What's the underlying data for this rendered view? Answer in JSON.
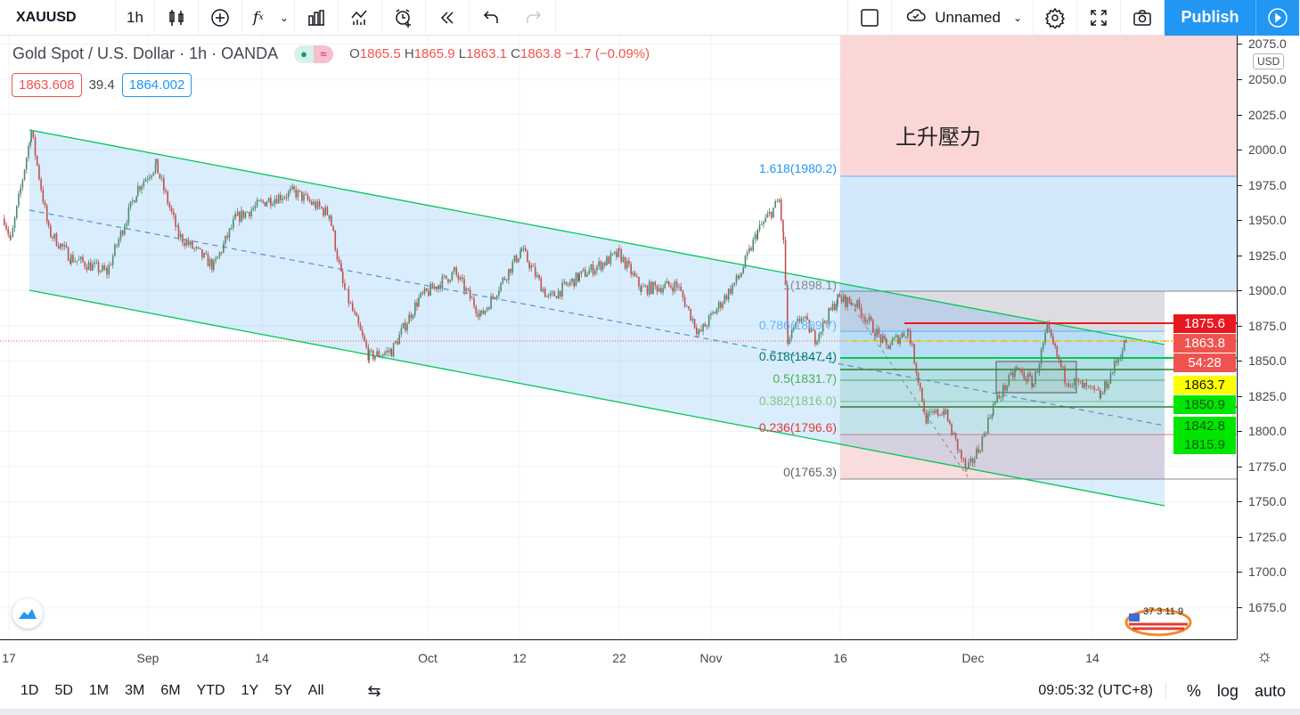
{
  "toolbar": {
    "symbol": "XAUUSD",
    "interval": "1h",
    "layout_name": "Unnamed",
    "publish_label": "Publish",
    "icons": [
      "candles-icon",
      "add-compare-icon",
      "indicators-icon",
      "chevron-down-icon",
      "financials-icon",
      "templates-icon",
      "alert-icon",
      "replay-icon",
      "undo-icon",
      "redo-icon",
      "square-icon",
      "cloud-check-icon",
      "gear-icon",
      "fullscreen-icon",
      "camera-icon",
      "play-icon"
    ]
  },
  "legend": {
    "title": "Gold Spot / U.S. Dollar · 1h · OANDA",
    "o_label": "O",
    "o": "1865.5",
    "h_label": "H",
    "h": "1865.9",
    "l_label": "L",
    "l": "1863.1",
    "c_label": "C",
    "c": "1863.8",
    "change": "−1.7 (−0.09%)",
    "bid": "1863.608",
    "spread": "39.4",
    "ask": "1864.002"
  },
  "annotation": "上升壓力",
  "fib_labels": [
    "1.618(1980.2)",
    "1(1898.1)",
    "0.786(1869.7)",
    "0.618(1847.4)",
    "0.5(1831.7)",
    "0.382(1816.0)",
    "0.236(1796.6)",
    "0(1765.3)"
  ],
  "price_axis": {
    "currency": "USD",
    "ticks": [
      "2075.0",
      "2050.0",
      "2025.0",
      "2000.0",
      "1975.0",
      "1950.0",
      "1925.0",
      "1900.0",
      "1875.0",
      "1850.0",
      "1825.0",
      "1800.0",
      "1775.0",
      "1750.0",
      "1725.0",
      "1700.0",
      "1675.0"
    ],
    "badges": [
      {
        "text": "1875.6",
        "bg": "#e8171f",
        "fg": "#ffffff"
      },
      {
        "text": "1863.8",
        "bg": "#ef5350",
        "fg": "#ffffff"
      },
      {
        "text": "54:28",
        "bg": "#ef5350",
        "fg": "#ffffff"
      },
      {
        "text": "1863.7",
        "bg": "#ffff00",
        "fg": "#131722"
      },
      {
        "text": "1850.9",
        "bg": "#00e600",
        "fg": "#0b5a0b"
      },
      {
        "text": "1842.8",
        "bg": "#00e600",
        "fg": "#0b5a0b"
      },
      {
        "text": "1815.9",
        "bg": "#00e600",
        "fg": "#0b5a0b"
      }
    ]
  },
  "time_axis": [
    "17",
    "Sep",
    "14",
    "Oct",
    "12",
    "22",
    "Nov",
    "16",
    "Dec",
    "14"
  ],
  "watermark_text": "37 3 11 9",
  "bottom": {
    "ranges": [
      "1D",
      "5D",
      "1M",
      "3M",
      "6M",
      "YTD",
      "1Y",
      "5Y",
      "All"
    ],
    "clock": "09:05:32 (UTC+8)",
    "pct": "%",
    "log": "log",
    "auto": "auto"
  },
  "colors": {
    "up": "#26a69a",
    "down": "#ef5350",
    "channel": "#00c853",
    "accent": "#2196f3"
  },
  "chart_data": {
    "type": "candlestick",
    "symbol": "XAUUSD",
    "interval": "1h",
    "ylim": [
      1655,
      2080
    ],
    "price_path": [
      [
        "2020-08-16T12:00",
        1951
      ],
      [
        "2020-08-17T05:00",
        1935
      ],
      [
        "2020-08-19T10:00",
        2013
      ],
      [
        "2020-08-21T07:00",
        1942
      ],
      [
        "2020-08-23T17:00",
        1923
      ],
      [
        "2020-08-27T14:00",
        1913
      ],
      [
        "2020-08-29T12:00",
        1948
      ],
      [
        "2020-08-30T22:00",
        1973
      ],
      [
        "2020-09-01T22:00",
        1989
      ],
      [
        "2020-09-04T12:00",
        1939
      ],
      [
        "2020-09-08T12:00",
        1917
      ],
      [
        "2020-09-11T00:00",
        1951
      ],
      [
        "2020-09-14T12:00",
        1964
      ],
      [
        "2020-09-17T07:00",
        1970
      ],
      [
        "2020-09-20T22:00",
        1954
      ],
      [
        "2020-09-22T07:00",
        1904
      ],
      [
        "2020-09-25T00:00",
        1853
      ],
      [
        "2020-09-27T07:00",
        1857
      ],
      [
        "2020-09-30T02:00",
        1894
      ],
      [
        "2020-10-04T05:00",
        1913
      ],
      [
        "2020-10-07T10:00",
        1882
      ],
      [
        "2020-10-12T05:00",
        1929
      ],
      [
        "2020-10-14T22:00",
        1894
      ],
      [
        "2020-10-18T00:00",
        1910
      ],
      [
        "2020-10-22T00:00",
        1926
      ],
      [
        "2020-10-24T10:00",
        1901
      ],
      [
        "2020-10-28T07:00",
        1904
      ],
      [
        "2020-10-30T17:00",
        1869
      ],
      [
        "2020-11-04T07:00",
        1910
      ],
      [
        "2020-11-06T10:00",
        1942
      ],
      [
        "2020-11-08T22:00",
        1964
      ],
      [
        "2020-11-09T10:00",
        1936
      ],
      [
        "2020-11-09T22:00",
        1863
      ],
      [
        "2020-11-11T12:00",
        1882
      ],
      [
        "2020-11-13T02:00",
        1866
      ],
      [
        "2020-11-15T17:00",
        1894
      ],
      [
        "2020-11-17T17:00",
        1891
      ],
      [
        "2020-11-21T05:00",
        1860
      ],
      [
        "2020-11-23T17:00",
        1872
      ],
      [
        "2020-11-25T17:00",
        1809
      ],
      [
        "2020-11-27T17:00",
        1815
      ],
      [
        "2020-11-30T07:00",
        1771
      ],
      [
        "2020-12-01T19:00",
        1790
      ],
      [
        "2020-12-03T05:00",
        1818
      ],
      [
        "2020-12-05T17:00",
        1844
      ],
      [
        "2020-12-07T14:00",
        1834
      ],
      [
        "2020-12-09T02:00",
        1872
      ],
      [
        "2020-12-11T00:00",
        1838
      ],
      [
        "2020-12-14T22:00",
        1825
      ],
      [
        "2020-12-17T19:00",
        1866
      ]
    ],
    "fib_levels": [
      {
        "ratio": 1.618,
        "price": 1980.2
      },
      {
        "ratio": 1,
        "price": 1898.1
      },
      {
        "ratio": 0.786,
        "price": 1869.7
      },
      {
        "ratio": 0.618,
        "price": 1847.4
      },
      {
        "ratio": 0.5,
        "price": 1831.7
      },
      {
        "ratio": 0.382,
        "price": 1816.0
      },
      {
        "ratio": 0.236,
        "price": 1796.6
      },
      {
        "ratio": 0,
        "price": 1765.3
      }
    ],
    "horizontal_lines": [
      1875.6,
      1863.8,
      1850.9,
      1842.8,
      1815.9
    ]
  }
}
